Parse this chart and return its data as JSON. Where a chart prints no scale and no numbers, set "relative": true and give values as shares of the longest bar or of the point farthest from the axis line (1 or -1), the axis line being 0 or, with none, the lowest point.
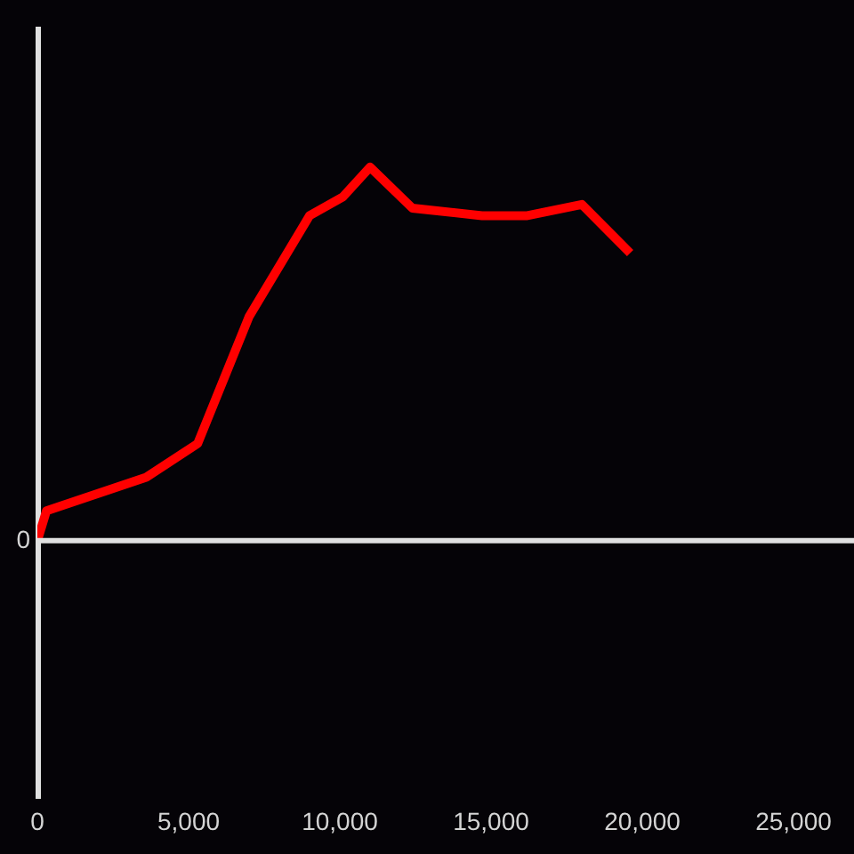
{
  "chart_data": {
    "type": "line",
    "relative": true,
    "x": [
      0,
      300,
      3600,
      5300,
      7000,
      9000,
      10100,
      11000,
      12400,
      14700,
      16200,
      18000,
      19600
    ],
    "values": [
      0,
      0.08,
      0.17,
      0.26,
      0.6,
      0.87,
      0.92,
      1,
      0.89,
      0.87,
      0.87,
      0.9,
      0.77
    ],
    "color": "#ff0000",
    "xlim": [
      0,
      27000
    ],
    "xticks": [
      {
        "value": 0,
        "label": "0"
      },
      {
        "value": 5000,
        "label": "5,000"
      },
      {
        "value": 10000,
        "label": "10,000"
      },
      {
        "value": 15000,
        "label": "15,000"
      },
      {
        "value": 20000,
        "label": "20,000"
      },
      {
        "value": 25000,
        "label": "25,000"
      }
    ],
    "ref_lines": [
      {
        "axis": "y",
        "value": 0,
        "label": "0",
        "color": "#e0e0e0"
      }
    ],
    "marker": "none"
  }
}
